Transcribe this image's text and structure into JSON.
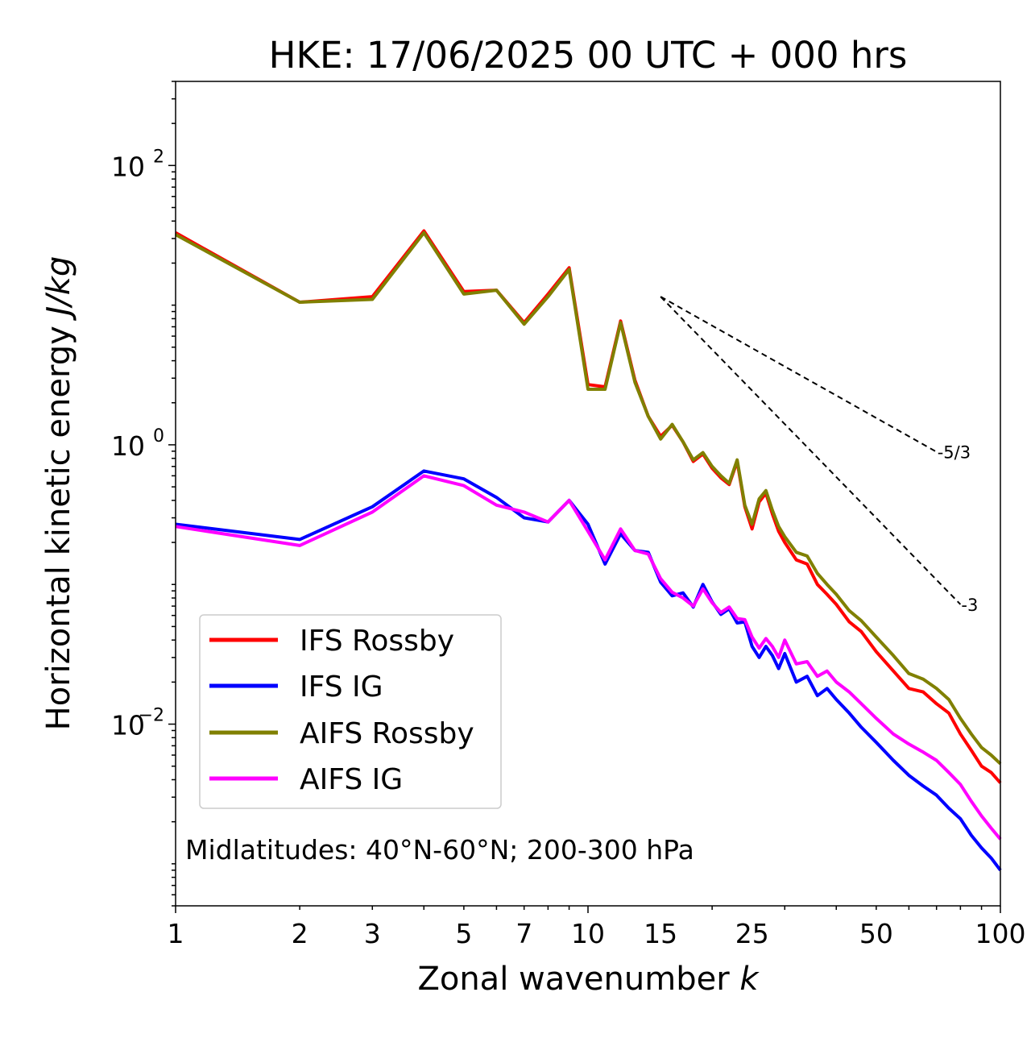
{
  "chart_data": {
    "type": "line",
    "title": "HKE: 17/06/2025 00 UTC + 000 hrs",
    "xlabel": "Zonal wavenumber",
    "xlabel_var": "k",
    "ylabel": "Horizontal kinetic energy",
    "ylabel_unit": "J/kg",
    "xscale": "log",
    "yscale": "log",
    "xlim": [
      1,
      100
    ],
    "ylim": [
      0.0005,
      400
    ],
    "xticks": [
      {
        "value": 1,
        "label": "1"
      },
      {
        "value": 2,
        "label": "2"
      },
      {
        "value": 3,
        "label": "3"
      },
      {
        "value": 5,
        "label": "5"
      },
      {
        "value": 7,
        "label": "7"
      },
      {
        "value": 10,
        "label": "10"
      },
      {
        "value": 15,
        "label": "15"
      },
      {
        "value": 25,
        "label": "25"
      },
      {
        "value": 50,
        "label": "50"
      },
      {
        "value": 100,
        "label": "100"
      }
    ],
    "yticks": [
      {
        "value": 0.01,
        "base": "10",
        "exp": "−2"
      },
      {
        "value": 1,
        "base": "10",
        "exp": "0"
      },
      {
        "value": 100,
        "base": "10",
        "exp": "2"
      }
    ],
    "grid": false,
    "legend_position": "lower-left",
    "annotation": "Midlatitudes: 40°N-60°N; 200-300 hPa",
    "reference_slopes": [
      {
        "label": "-5/3",
        "x": [
          15,
          70
        ],
        "y": [
          11.5,
          0.89
        ]
      },
      {
        "label": "-3",
        "x": [
          15,
          80
        ],
        "y": [
          11.5,
          0.072
        ]
      }
    ],
    "series": [
      {
        "name": "IFS Rossby",
        "color": "#ff0000",
        "x": [
          1,
          2,
          3,
          4,
          5,
          6,
          7,
          8,
          9,
          10,
          11,
          12,
          13,
          14,
          15,
          16,
          17,
          18,
          19,
          20,
          21,
          22,
          23,
          24,
          25,
          26,
          27,
          28,
          29,
          30,
          32,
          34,
          36,
          38,
          40,
          43,
          46,
          50,
          55,
          60,
          65,
          70,
          75,
          80,
          85,
          90,
          95,
          100
        ],
        "y": [
          33,
          10.5,
          11.5,
          34,
          12.5,
          12.8,
          7.5,
          12,
          18.5,
          2.7,
          2.6,
          7.7,
          2.9,
          1.6,
          1.15,
          1.38,
          1.05,
          0.76,
          0.86,
          0.68,
          0.58,
          0.52,
          0.76,
          0.36,
          0.25,
          0.39,
          0.45,
          0.32,
          0.24,
          0.2,
          0.15,
          0.14,
          0.1,
          0.085,
          0.072,
          0.054,
          0.046,
          0.033,
          0.024,
          0.018,
          0.017,
          0.014,
          0.012,
          0.0085,
          0.0065,
          0.005,
          0.0045,
          0.0038
        ]
      },
      {
        "name": "IFS IG",
        "color": "#0000ff",
        "x": [
          1,
          2,
          3,
          4,
          5,
          6,
          7,
          8,
          9,
          10,
          11,
          12,
          13,
          14,
          15,
          16,
          17,
          18,
          19,
          20,
          21,
          22,
          23,
          24,
          25,
          26,
          27,
          28,
          29,
          30,
          32,
          34,
          36,
          38,
          40,
          43,
          46,
          50,
          55,
          60,
          65,
          70,
          75,
          80,
          85,
          90,
          95,
          100
        ],
        "y": [
          0.27,
          0.21,
          0.36,
          0.65,
          0.57,
          0.42,
          0.3,
          0.28,
          0.4,
          0.27,
          0.14,
          0.23,
          0.175,
          0.17,
          0.104,
          0.083,
          0.087,
          0.069,
          0.1,
          0.075,
          0.061,
          0.067,
          0.053,
          0.054,
          0.036,
          0.03,
          0.036,
          0.031,
          0.025,
          0.032,
          0.02,
          0.022,
          0.016,
          0.018,
          0.015,
          0.012,
          0.0095,
          0.0074,
          0.0055,
          0.0043,
          0.0036,
          0.0031,
          0.0025,
          0.0021,
          0.0016,
          0.0013,
          0.0011,
          0.0009
        ]
      },
      {
        "name": "AIFS Rossby",
        "color": "#808000",
        "x": [
          1,
          2,
          3,
          4,
          5,
          6,
          7,
          8,
          9,
          10,
          11,
          12,
          13,
          14,
          15,
          16,
          17,
          18,
          19,
          20,
          21,
          22,
          23,
          24,
          25,
          26,
          27,
          28,
          29,
          30,
          32,
          34,
          36,
          38,
          40,
          43,
          46,
          50,
          55,
          60,
          65,
          70,
          75,
          80,
          85,
          90,
          95,
          100
        ],
        "y": [
          32,
          10.5,
          11,
          33,
          12,
          12.8,
          7.3,
          11.5,
          18,
          2.5,
          2.5,
          7.5,
          2.8,
          1.6,
          1.1,
          1.4,
          1.05,
          0.78,
          0.88,
          0.7,
          0.6,
          0.53,
          0.78,
          0.37,
          0.27,
          0.41,
          0.47,
          0.34,
          0.26,
          0.22,
          0.17,
          0.16,
          0.12,
          0.1,
          0.085,
          0.065,
          0.055,
          0.042,
          0.031,
          0.023,
          0.021,
          0.018,
          0.015,
          0.011,
          0.0085,
          0.0068,
          0.006,
          0.0052
        ]
      },
      {
        "name": "AIFS IG",
        "color": "#ff00ff",
        "x": [
          1,
          2,
          3,
          4,
          5,
          6,
          7,
          8,
          9,
          10,
          11,
          12,
          13,
          14,
          15,
          16,
          17,
          18,
          19,
          20,
          21,
          22,
          23,
          24,
          25,
          26,
          27,
          28,
          29,
          30,
          32,
          34,
          36,
          38,
          40,
          43,
          46,
          50,
          55,
          60,
          65,
          70,
          75,
          80,
          85,
          90,
          95,
          100
        ],
        "y": [
          0.26,
          0.19,
          0.33,
          0.6,
          0.51,
          0.37,
          0.33,
          0.28,
          0.4,
          0.24,
          0.15,
          0.25,
          0.175,
          0.165,
          0.11,
          0.088,
          0.08,
          0.07,
          0.093,
          0.074,
          0.063,
          0.069,
          0.057,
          0.056,
          0.042,
          0.035,
          0.041,
          0.036,
          0.03,
          0.04,
          0.027,
          0.028,
          0.022,
          0.024,
          0.02,
          0.017,
          0.014,
          0.011,
          0.0085,
          0.0072,
          0.0063,
          0.0055,
          0.0045,
          0.0037,
          0.0028,
          0.0022,
          0.0018,
          0.0015
        ]
      }
    ]
  }
}
